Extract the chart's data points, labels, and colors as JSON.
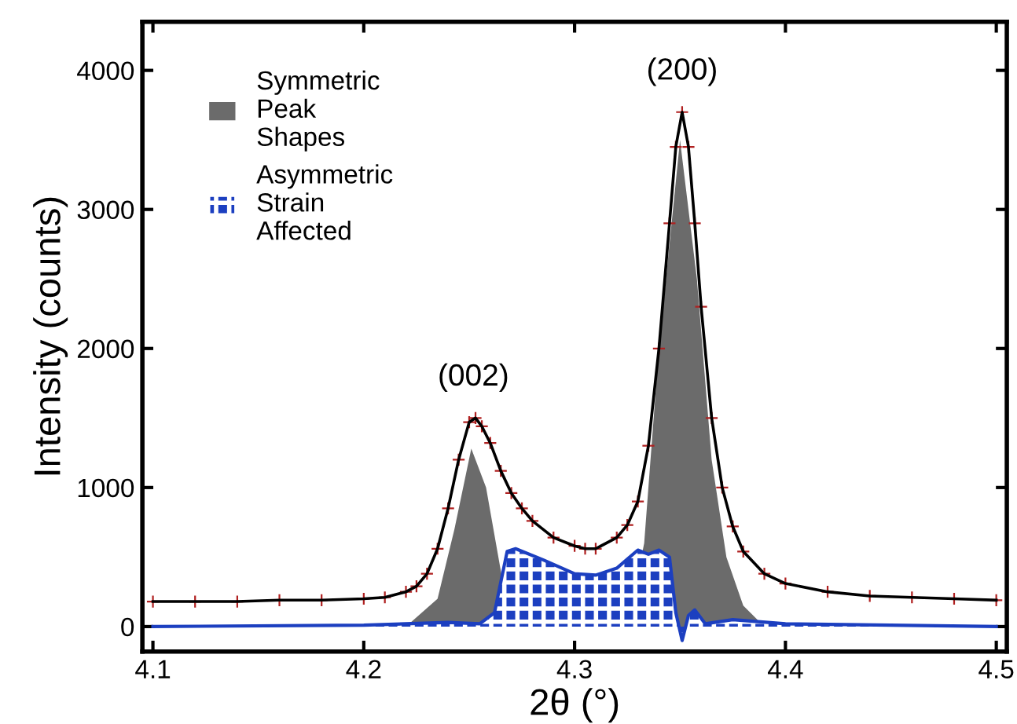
{
  "chart_data": {
    "type": "line",
    "xlabel": "2θ (°)",
    "ylabel": "Intensity (counts)",
    "xlim": [
      4.095,
      4.505
    ],
    "ylim": [
      -180,
      4350
    ],
    "xticks": [
      4.1,
      4.2,
      4.3,
      4.4,
      4.5
    ],
    "yticks": [
      0,
      1000,
      2000,
      3000,
      4000
    ],
    "grid": false,
    "legend": "top left",
    "annotations": [
      {
        "text": "(002)",
        "x": 4.252,
        "y": 1500
      },
      {
        "text": "(200)",
        "x": 4.351,
        "y": 3700
      }
    ],
    "series": [
      {
        "name": "Symmetric\nPeak\nShapes",
        "type": "area",
        "color": "#6b6b6b",
        "x": [
          4.1,
          4.22,
          4.235,
          4.243,
          4.251,
          4.258,
          4.265,
          4.27,
          4.325,
          4.333,
          4.34,
          4.35,
          4.358,
          4.365,
          4.372,
          4.38,
          4.39,
          4.5
        ],
        "values": [
          0,
          0,
          200,
          700,
          1280,
          1000,
          400,
          0,
          0,
          600,
          2000,
          3500,
          2500,
          1200,
          500,
          150,
          0,
          0
        ]
      },
      {
        "name": "Asymmetric\nStrain\nAffected",
        "type": "area",
        "color": "#1c3fc0",
        "x": [
          4.1,
          4.2,
          4.24,
          4.255,
          4.262,
          4.268,
          4.272,
          4.285,
          4.3,
          4.31,
          4.32,
          4.33,
          4.335,
          4.34,
          4.345,
          4.348,
          4.351,
          4.354,
          4.357,
          4.362,
          4.375,
          4.4,
          4.5
        ],
        "values": [
          0,
          10,
          30,
          20,
          100,
          540,
          560,
          480,
          380,
          370,
          420,
          550,
          520,
          550,
          500,
          100,
          -100,
          80,
          120,
          20,
          50,
          20,
          0
        ]
      },
      {
        "type": "scatter",
        "marker": "cross",
        "color": "#b02020",
        "x": [
          4.1,
          4.12,
          4.14,
          4.16,
          4.18,
          4.2,
          4.21,
          4.22,
          4.225,
          4.23,
          4.235,
          4.24,
          4.245,
          4.25,
          4.253,
          4.256,
          4.26,
          4.265,
          4.27,
          4.275,
          4.28,
          4.29,
          4.3,
          4.305,
          4.31,
          4.32,
          4.325,
          4.33,
          4.335,
          4.34,
          4.345,
          4.348,
          4.351,
          4.354,
          4.357,
          4.36,
          4.365,
          4.37,
          4.375,
          4.38,
          4.39,
          4.4,
          4.42,
          4.44,
          4.46,
          4.48,
          4.5
        ],
        "values": [
          180,
          180,
          180,
          190,
          190,
          200,
          210,
          250,
          290,
          380,
          560,
          850,
          1200,
          1470,
          1500,
          1440,
          1320,
          1120,
          960,
          850,
          760,
          640,
          580,
          560,
          560,
          640,
          730,
          900,
          1300,
          2000,
          2900,
          3450,
          3700,
          3450,
          2900,
          2300,
          1500,
          1000,
          720,
          540,
          380,
          310,
          250,
          220,
          210,
          200,
          190
        ]
      },
      {
        "color": "#000000",
        "x": [
          4.1,
          4.12,
          4.14,
          4.16,
          4.18,
          4.2,
          4.21,
          4.22,
          4.225,
          4.23,
          4.235,
          4.24,
          4.245,
          4.25,
          4.253,
          4.256,
          4.26,
          4.265,
          4.27,
          4.275,
          4.28,
          4.29,
          4.3,
          4.305,
          4.31,
          4.32,
          4.325,
          4.33,
          4.335,
          4.34,
          4.345,
          4.348,
          4.351,
          4.354,
          4.357,
          4.36,
          4.365,
          4.37,
          4.375,
          4.38,
          4.39,
          4.4,
          4.42,
          4.44,
          4.46,
          4.48,
          4.5
        ],
        "values": [
          180,
          180,
          180,
          190,
          190,
          200,
          210,
          250,
          290,
          380,
          560,
          850,
          1200,
          1470,
          1500,
          1440,
          1320,
          1120,
          960,
          850,
          760,
          640,
          580,
          560,
          560,
          640,
          730,
          900,
          1300,
          2000,
          2900,
          3450,
          3700,
          3450,
          2900,
          2300,
          1500,
          1000,
          720,
          540,
          380,
          310,
          250,
          220,
          210,
          200,
          190
        ]
      }
    ]
  }
}
